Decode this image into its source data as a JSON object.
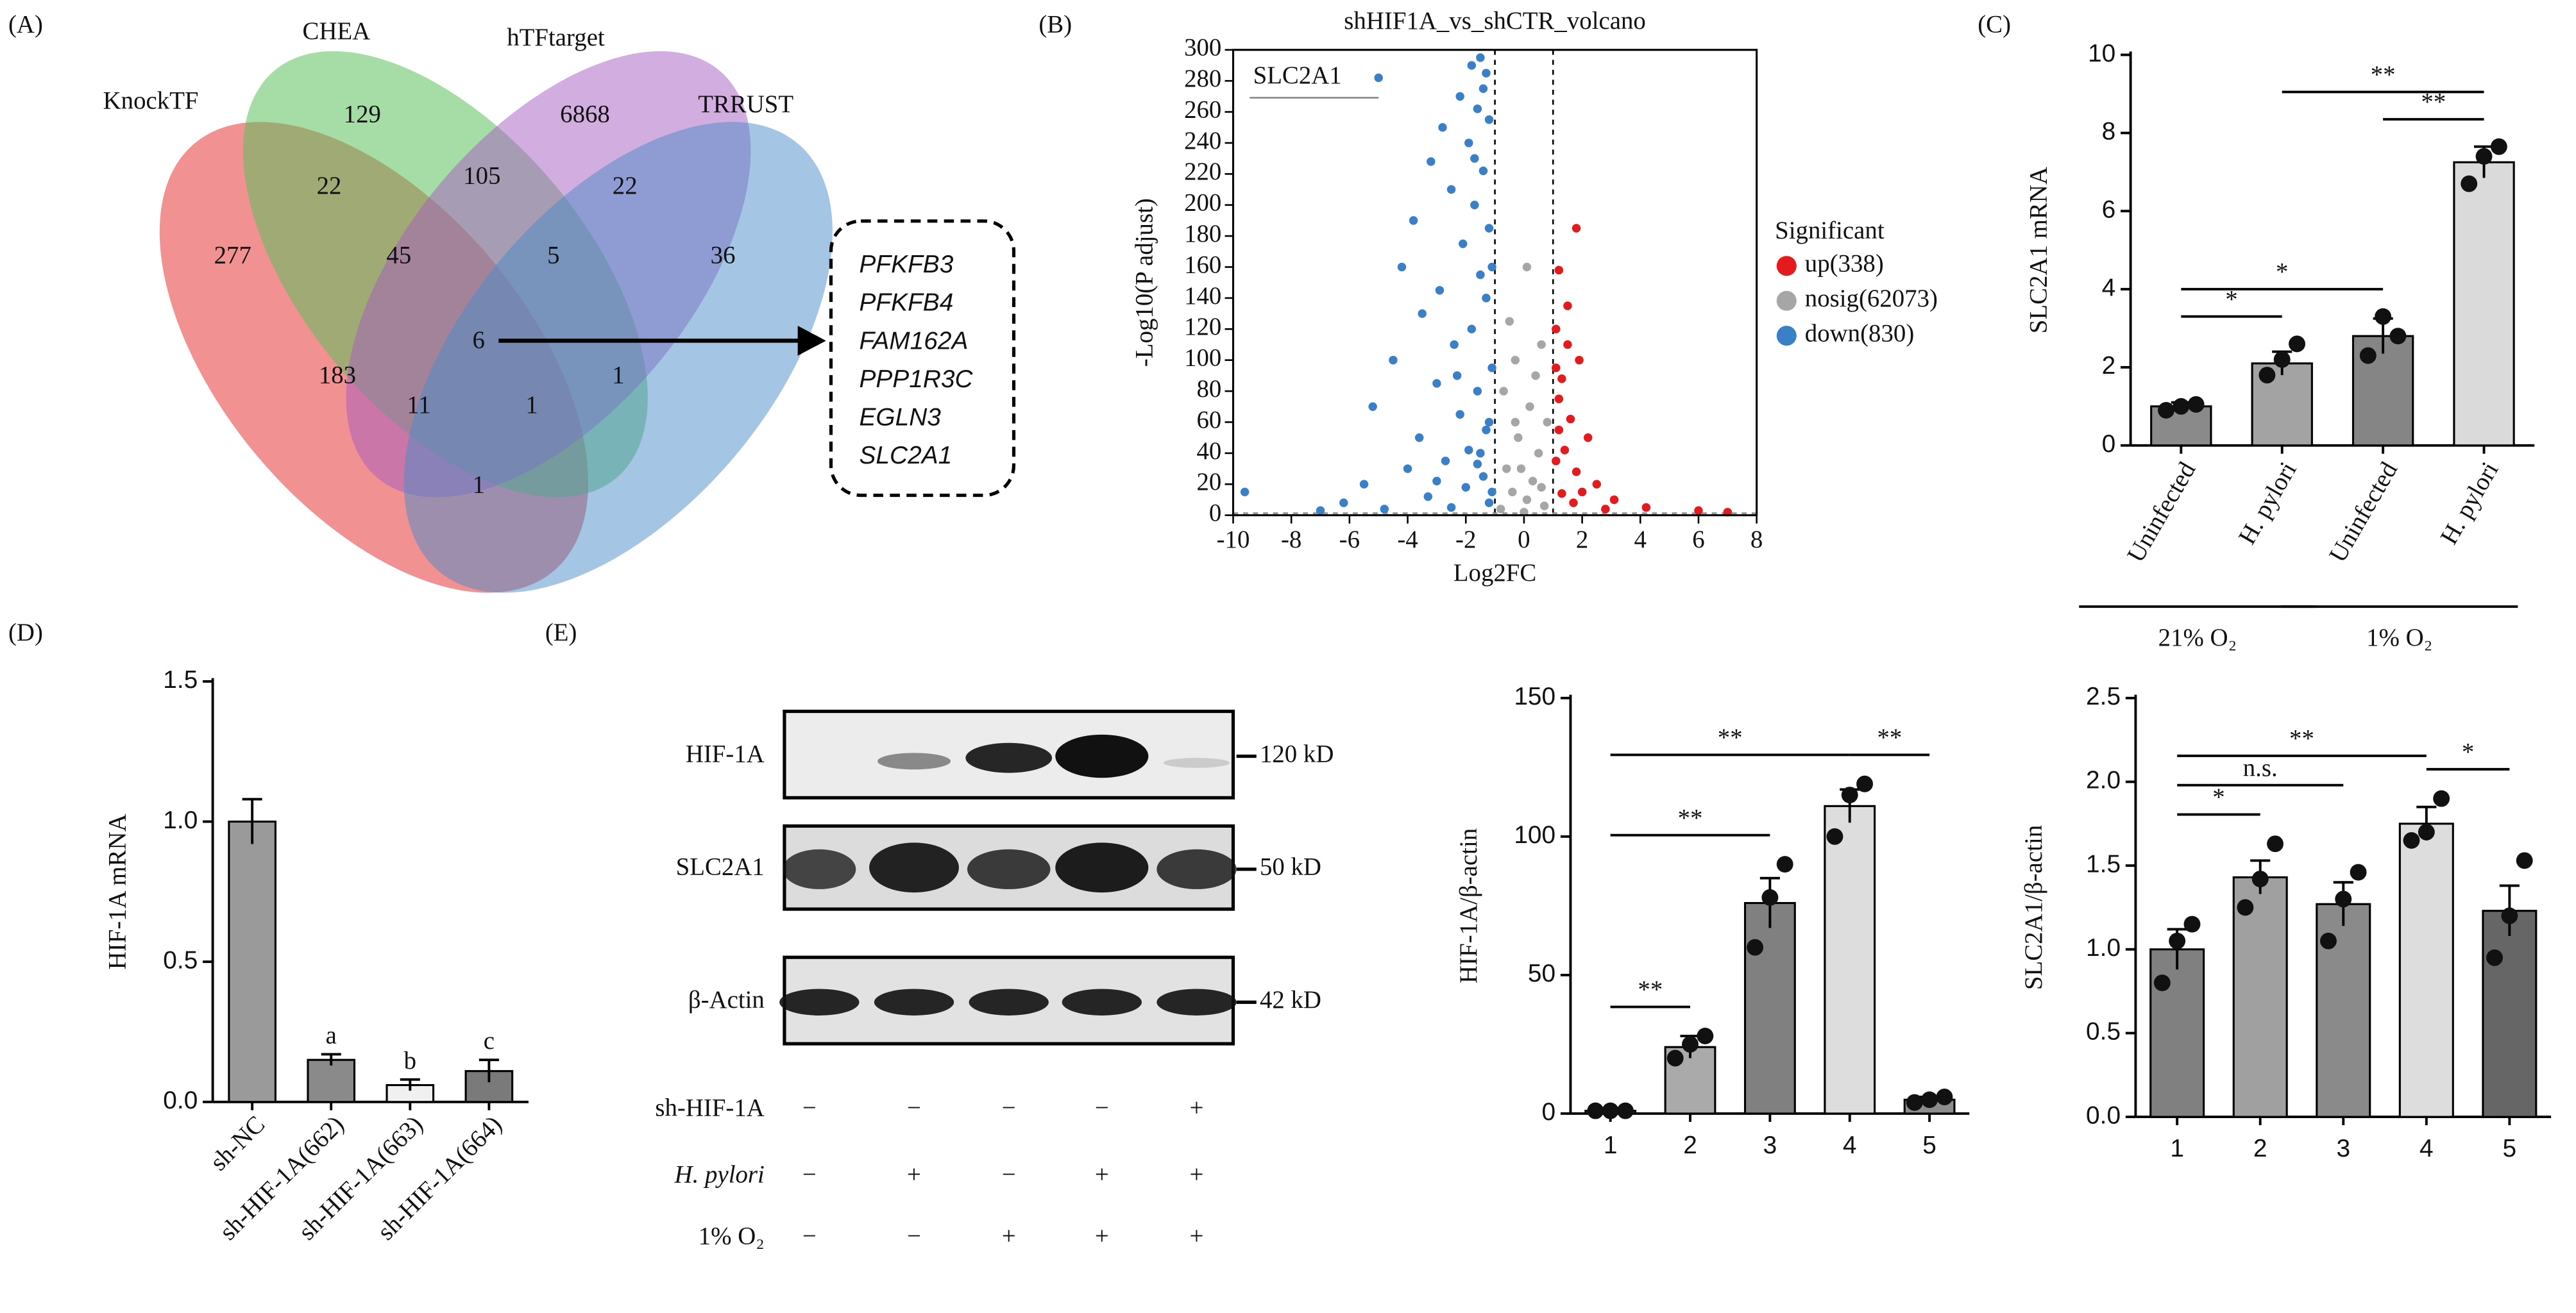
{
  "panels": [
    "(A)",
    "(B)",
    "(C)",
    "(D)",
    "(E)"
  ],
  "venn": {
    "sets": [
      "KnockTF",
      "CHEA",
      "hTFtarget",
      "TRRUST"
    ],
    "regions": [
      277,
      129,
      6868,
      36,
      22,
      105,
      22,
      45,
      5,
      6,
      183,
      11,
      1,
      1,
      1
    ],
    "genes": [
      "PFKFB3",
      "PFKFB4",
      "FAM162A",
      "PPP1R3C",
      "EGLN3",
      "SLC2A1"
    ]
  },
  "blot": {
    "rows": [
      "HIF-1A",
      "SLC2A1",
      "β-Actin"
    ],
    "sizes": [
      "120 kD",
      "50 kD",
      "42 kD"
    ],
    "treatments": [
      {
        "name": "sh-HIF-1A",
        "signs": [
          "−",
          "−",
          "−",
          "−",
          "+"
        ]
      },
      {
        "name": "H. pylori",
        "signs": [
          "−",
          "+",
          "−",
          "+",
          "+"
        ]
      },
      {
        "name": "1% O₂",
        "signs": [
          "−",
          "−",
          "+",
          "+",
          "+"
        ]
      }
    ]
  },
  "chart_data": [
    {
      "type": "scatter",
      "title": "shHIF1A_vs_shCTR_volcano",
      "xlabel": "Log2FC",
      "ylabel": "-Log10(P adjust)",
      "xlim": [
        -10,
        8
      ],
      "xticks": [
        -10,
        -8,
        -6,
        -4,
        -2,
        0,
        2,
        4,
        6,
        8
      ],
      "ylim": [
        0,
        300
      ],
      "yticks": [
        0,
        20,
        40,
        60,
        80,
        100,
        120,
        140,
        160,
        180,
        200,
        220,
        240,
        260,
        280,
        300
      ],
      "thresholds": {
        "x": [
          -1,
          1
        ],
        "y": 1.3
      },
      "legend_title": "Significant",
      "annotation": {
        "text": "SLC2A1",
        "x": -5,
        "y": 282
      },
      "series": [
        {
          "name": "up(338)",
          "color": "#e41a1c",
          "x": [
            1.8,
            1.2,
            1.5,
            1.1,
            1.9,
            1.3,
            1.2,
            1.6,
            2.2,
            1.4,
            1.1,
            1.8,
            2.5,
            1.3,
            3.1,
            1.7,
            4.2,
            2.8,
            6.0,
            7.0,
            1.2,
            1.5,
            1.1,
            2.0
          ],
          "y": [
            185,
            158,
            135,
            120,
            100,
            88,
            75,
            62,
            50,
            42,
            35,
            28,
            20,
            14,
            10,
            8,
            5,
            4,
            3,
            2,
            55,
            110,
            95,
            15
          ]
        },
        {
          "name": "nosig(62073)",
          "color": "#a6a6a6",
          "x": [
            0.1,
            -0.5,
            0.6,
            -0.3,
            0.4,
            -0.7,
            0.2,
            0.8,
            -0.2,
            0.5,
            -0.6,
            0.3,
            -0.4,
            0.1,
            0.7,
            -0.8,
            0.0,
            -0.1,
            0.6,
            -0.3
          ],
          "y": [
            160,
            125,
            110,
            100,
            90,
            80,
            70,
            60,
            50,
            40,
            30,
            22,
            15,
            10,
            6,
            4,
            2,
            30,
            18,
            60
          ]
        },
        {
          "name": "down(830)",
          "color": "#3a80c8",
          "x": [
            -5,
            -1.5,
            -1.8,
            -1.3,
            -2.2,
            -1.6,
            -1.2,
            -2.8,
            -1.9,
            -3.2,
            -1.4,
            -2.5,
            -1.7,
            -3.8,
            -1.2,
            -2.1,
            -4.2,
            -1.5,
            -2.9,
            -1.3,
            -3.5,
            -1.8,
            -2.4,
            -4.5,
            -1.1,
            -3.0,
            -1.6,
            -5.2,
            -2.2,
            -1.3,
            -3.6,
            -1.9,
            -2.7,
            -4.0,
            -1.4,
            -5.5,
            -2.0,
            -3.3,
            -6.2,
            -1.2,
            -2.5,
            -4.8,
            -7.0,
            -9.6,
            -3.0,
            -1.5,
            -2.3,
            -1.1,
            -1.7,
            -1.4,
            -1.2,
            -1.6,
            -1.1
          ],
          "y": [
            282,
            295,
            290,
            285,
            270,
            262,
            255,
            250,
            240,
            228,
            222,
            210,
            200,
            190,
            185,
            175,
            160,
            155,
            145,
            140,
            130,
            120,
            110,
            100,
            95,
            85,
            80,
            70,
            65,
            55,
            50,
            42,
            35,
            30,
            25,
            20,
            18,
            12,
            8,
            8,
            5,
            4,
            3,
            15,
            22,
            40,
            90,
            160,
            230,
            275,
            60,
            33,
            15
          ]
        }
      ]
    },
    {
      "type": "bar",
      "ylabel": "SLC2A1 mRNA",
      "categories": [
        "Uninfected",
        "H. pylori",
        "Uninfected",
        "H. pylori"
      ],
      "values": [
        1.0,
        2.1,
        2.8,
        7.25
      ],
      "errors": [
        0.1,
        0.3,
        0.45,
        0.4
      ],
      "points": [
        [
          0.9,
          1.0,
          1.05
        ],
        [
          1.8,
          2.2,
          2.6
        ],
        [
          2.3,
          3.3,
          2.8
        ],
        [
          6.7,
          7.4,
          7.65
        ]
      ],
      "colors": [
        "#8a8a8a",
        "#a3a3a3",
        "#858585",
        "#dadada"
      ],
      "ylim": [
        0,
        10
      ],
      "yticks": [
        0,
        2,
        4,
        6,
        8,
        10
      ],
      "groups": [
        "21% O₂",
        "1% O₂"
      ],
      "significance": [
        {
          "pair": [
            0,
            1
          ],
          "label": "*"
        },
        {
          "pair": [
            0,
            2
          ],
          "label": "*"
        },
        {
          "pair": [
            2,
            3
          ],
          "label": "**"
        },
        {
          "pair": [
            1,
            3
          ],
          "label": "**"
        }
      ]
    },
    {
      "type": "bar",
      "ylabel": "HIF-1A mRNA",
      "categories": [
        "sh-NC",
        "sh-HIF-1A(662)",
        "sh-HIF-1A(663)",
        "sh-HIF-1A(664)"
      ],
      "values": [
        1.0,
        0.15,
        0.06,
        0.11
      ],
      "errors": [
        0.08,
        0.02,
        0.02,
        0.04
      ],
      "letters": [
        null,
        "a",
        "b",
        "c"
      ],
      "colors": [
        "#9a9a9a",
        "#8a8a8a",
        "#f0f0f0",
        "#7a7a7a"
      ],
      "ylim": [
        0,
        1.5
      ],
      "yticks": [
        {
          "value": 0,
          "label": "0.0"
        },
        0.5,
        {
          "value": 1,
          "label": "1.0"
        },
        1.5
      ]
    },
    {
      "type": "bar",
      "ylabel": "HIF-1A/β-actin",
      "categories": [
        "1",
        "2",
        "3",
        "4",
        "5"
      ],
      "values": [
        1,
        24,
        76,
        111,
        5
      ],
      "errors": [
        0.3,
        4,
        9,
        6,
        1
      ],
      "points": [
        [
          1,
          1,
          1
        ],
        [
          20,
          25,
          28
        ],
        [
          60,
          78,
          90
        ],
        [
          100,
          115,
          119
        ],
        [
          4,
          5,
          6
        ]
      ],
      "colors": [
        "#707070",
        "#aaaaaa",
        "#808080",
        "#dddddd",
        "#8c8c8c"
      ],
      "ylim": [
        0,
        150
      ],
      "yticks": [
        0,
        50,
        100,
        150
      ],
      "significance": [
        {
          "pair": [
            0,
            1
          ],
          "label": "**"
        },
        {
          "pair": [
            0,
            2
          ],
          "label": "**"
        },
        {
          "pair": [
            0,
            3
          ],
          "label": "**"
        },
        {
          "pair": [
            3,
            4
          ],
          "label": "**"
        }
      ]
    },
    {
      "type": "bar",
      "ylabel": "SLC2A1/β-actin",
      "categories": [
        "1",
        "2",
        "3",
        "4",
        "5"
      ],
      "values": [
        1.0,
        1.43,
        1.27,
        1.75,
        1.23
      ],
      "errors": [
        0.12,
        0.1,
        0.13,
        0.1,
        0.15
      ],
      "points": [
        [
          0.8,
          1.05,
          1.15
        ],
        [
          1.25,
          1.42,
          1.63
        ],
        [
          1.05,
          1.3,
          1.46
        ],
        [
          1.65,
          1.7,
          1.9
        ],
        [
          0.95,
          1.2,
          1.53
        ]
      ],
      "colors": [
        "#808080",
        "#a0a0a0",
        "#8a8a8a",
        "#dddddd",
        "#666666"
      ],
      "ylim": [
        0,
        2.5
      ],
      "yticks": [
        {
          "value": 0,
          "label": "0.0"
        },
        0.5,
        {
          "value": 1,
          "label": "1.0"
        },
        1.5,
        {
          "value": 2,
          "label": "2.0"
        },
        2.5
      ],
      "significance": [
        {
          "pair": [
            0,
            1
          ],
          "label": "*"
        },
        {
          "pair": [
            0,
            2
          ],
          "label": "n.s."
        },
        {
          "pair": [
            0,
            3
          ],
          "label": "**"
        },
        {
          "pair": [
            3,
            4
          ],
          "label": "*"
        }
      ]
    }
  ]
}
